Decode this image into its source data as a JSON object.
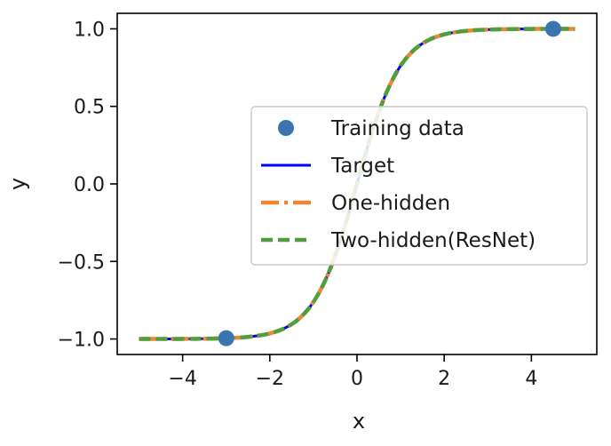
{
  "chart_data": {
    "type": "line",
    "title": "",
    "xlabel": "x",
    "ylabel": "y",
    "xlim": [
      -5.5,
      5.5
    ],
    "ylim": [
      -1.1,
      1.1
    ],
    "xticks": [
      -4,
      -2,
      0,
      2,
      4
    ],
    "xtick_labels": [
      "−4",
      "−2",
      "0",
      "2",
      "4"
    ],
    "yticks": [
      -1.0,
      -0.5,
      0.0,
      0.5,
      1.0
    ],
    "ytick_labels": [
      "−1.0",
      "−0.5",
      "0.0",
      "0.5",
      "1.0"
    ],
    "grid": false,
    "legend_position": "center-right",
    "series": [
      {
        "name": "Training data",
        "kind": "scatter",
        "color": "#3b75af",
        "x": [
          -3,
          4.5
        ],
        "y": [
          -0.995,
          0.9998
        ]
      },
      {
        "name": "Target",
        "kind": "line",
        "style": "solid",
        "color": "#0000ff",
        "function": "tanh",
        "x_range": [
          -5,
          5
        ]
      },
      {
        "name": "One-hidden",
        "kind": "line",
        "style": "dashdot",
        "color": "#ef8636",
        "function": "tanh",
        "x_range": [
          -5,
          5
        ]
      },
      {
        "name": "Two-hidden(ResNet)",
        "kind": "line",
        "style": "dashed",
        "color": "#519e3e",
        "function": "tanh",
        "x_range": [
          -5,
          5
        ]
      }
    ]
  }
}
